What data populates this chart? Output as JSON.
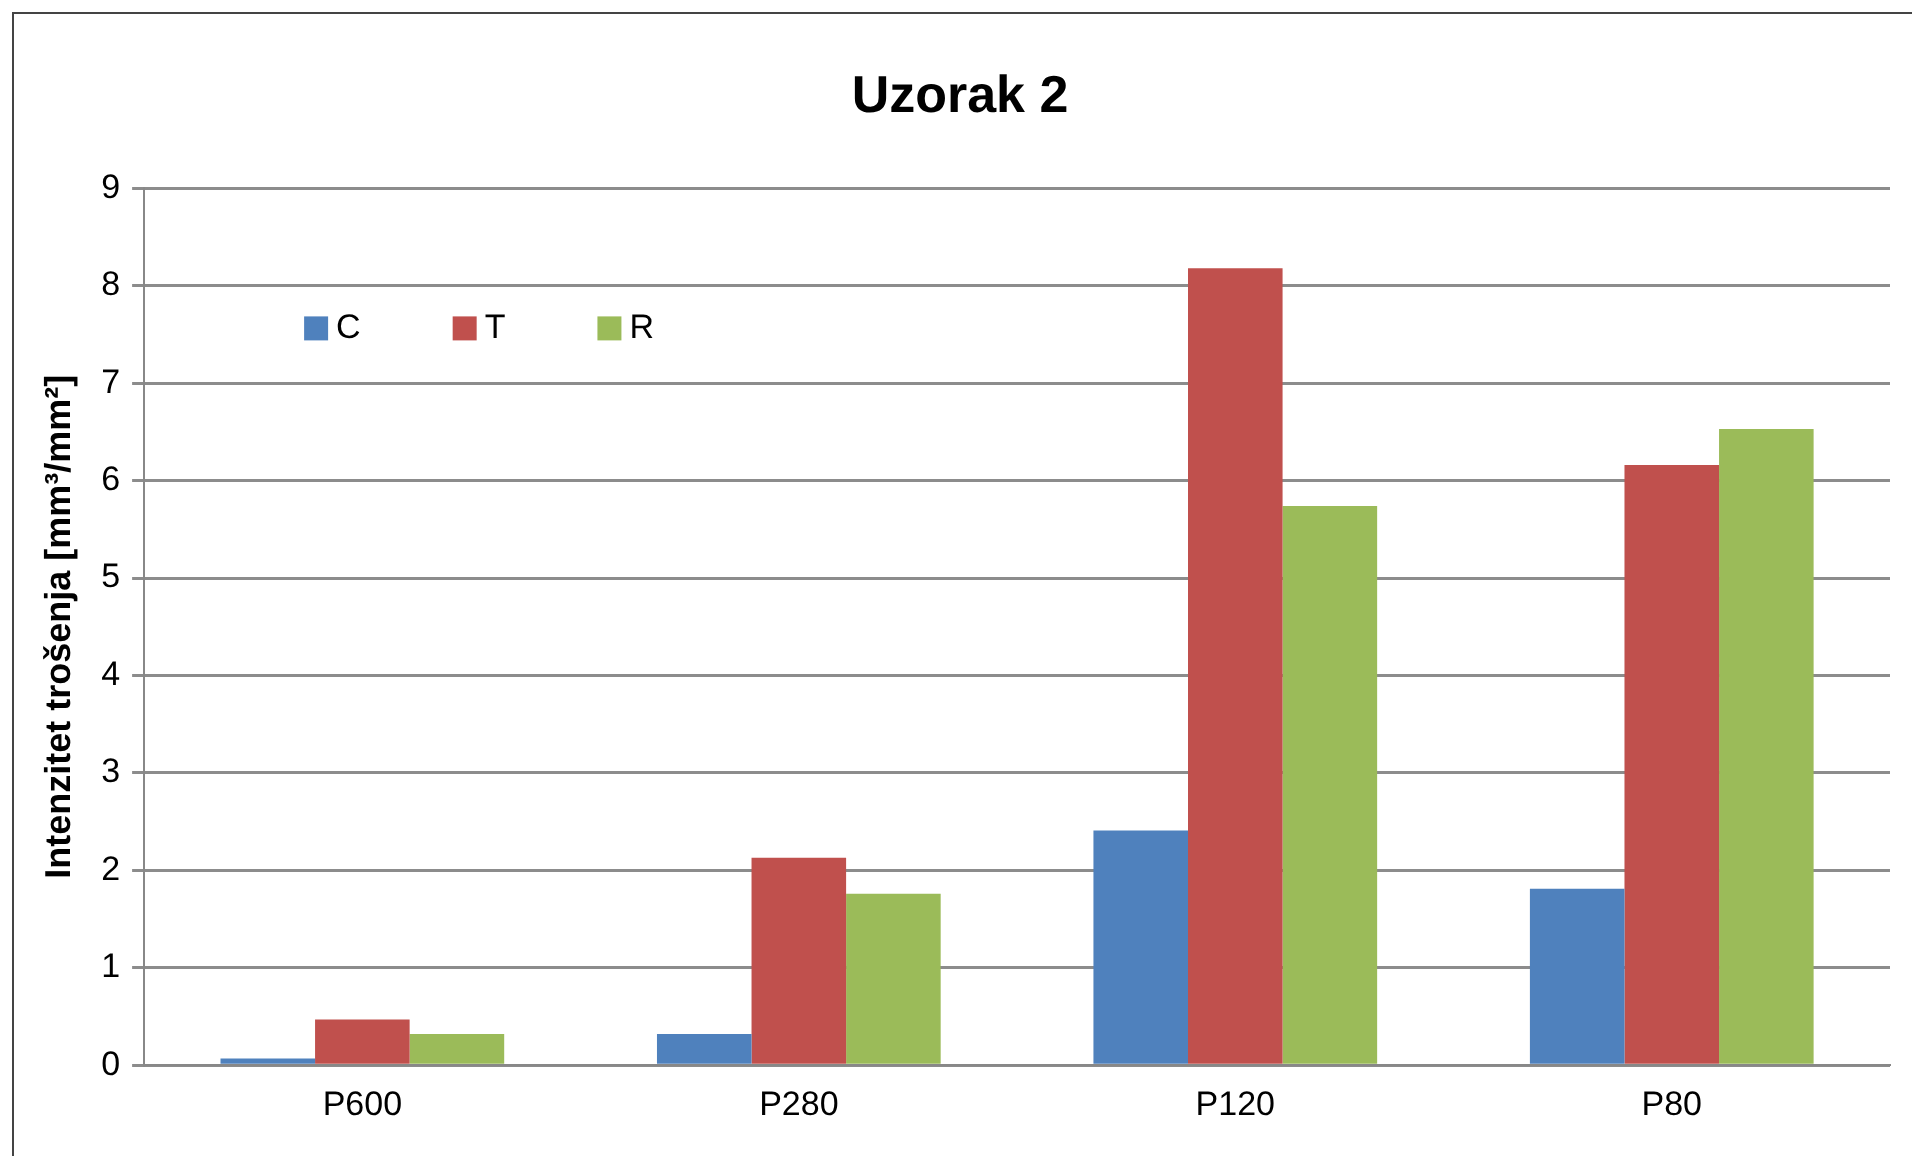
{
  "chart_data": {
    "type": "bar",
    "title": "Uzorak 2",
    "ylabel": "Intenzitet trošenja [mm³/mm²]",
    "categories": [
      "P600",
      "P280",
      "P120",
      "P80"
    ],
    "series": [
      {
        "name": "C",
        "color": "#4f81bd",
        "values": [
          0.07,
          0.32,
          2.41,
          1.81
        ]
      },
      {
        "name": "T",
        "color": "#c0504d",
        "values": [
          0.47,
          2.13,
          8.18,
          6.16
        ]
      },
      {
        "name": "R",
        "color": "#9bbb59",
        "values": [
          0.32,
          1.76,
          5.74,
          6.53
        ]
      }
    ],
    "ylim": [
      0,
      9
    ],
    "yticks": [
      0,
      1,
      2,
      3,
      4,
      5,
      6,
      7,
      8,
      9
    ],
    "grid": "y",
    "legend": "top left"
  }
}
